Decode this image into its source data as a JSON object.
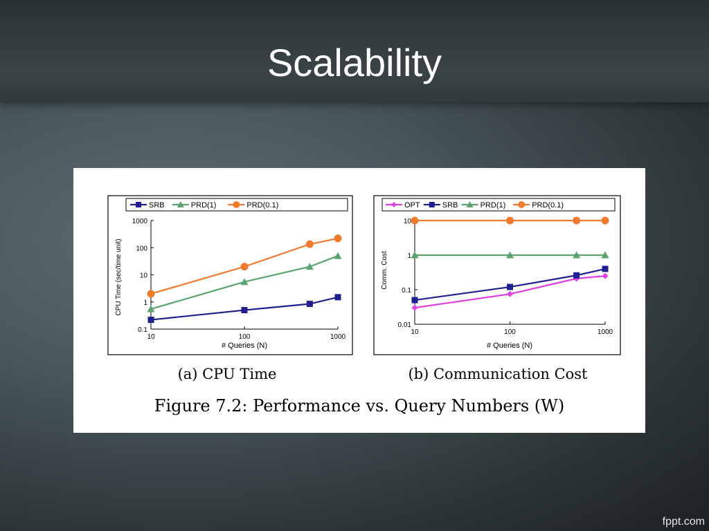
{
  "slide": {
    "title": "Scalability",
    "brand": "fppt.com"
  },
  "figure": {
    "caption": "Figure 7.2: Performance vs. Query Numbers (W)"
  },
  "chart_data": [
    {
      "type": "line",
      "subcaption": "(a) CPU Time",
      "xlabel": "# Queries (N)",
      "ylabel": "CPU Time (sec/time unit)",
      "xscale": "log",
      "yscale": "log",
      "xlim": [
        10,
        1000
      ],
      "ylim": [
        0.1,
        1000
      ],
      "xticks": [
        "10",
        "100",
        "1000"
      ],
      "yticks": [
        "0.1",
        "1",
        "10",
        "100",
        "1000"
      ],
      "legend_position": "top",
      "series": [
        {
          "name": "SRB",
          "color": "#1f1f8f",
          "marker": "square",
          "x": [
            10,
            100,
            500,
            1000
          ],
          "y": [
            0.22,
            0.5,
            0.85,
            1.5
          ]
        },
        {
          "name": "PRD(1)",
          "color": "#5aa36f",
          "marker": "triangle",
          "x": [
            10,
            100,
            500,
            1000
          ],
          "y": [
            0.55,
            5.5,
            20,
            50
          ]
        },
        {
          "name": "PRD(0.1)",
          "color": "#f07a2e",
          "marker": "circle",
          "x": [
            10,
            100,
            500,
            1000
          ],
          "y": [
            2,
            20,
            135,
            220
          ]
        }
      ]
    },
    {
      "type": "line",
      "subcaption": "(b) Communication Cost",
      "xlabel": "# Queries (N)",
      "ylabel": "Comm. Cost",
      "xscale": "log",
      "yscale": "log",
      "xlim": [
        10,
        1000
      ],
      "ylim": [
        0.01,
        10
      ],
      "xticks": [
        "10",
        "100",
        "1000"
      ],
      "yticks": [
        "0.01",
        "0.1",
        "1",
        "10"
      ],
      "legend_position": "top",
      "series": [
        {
          "name": "OPT",
          "color": "#e040e0",
          "marker": "diamond",
          "x": [
            10,
            100,
            500,
            1000
          ],
          "y": [
            0.03,
            0.075,
            0.21,
            0.25
          ]
        },
        {
          "name": "SRB",
          "color": "#1f1f8f",
          "marker": "square",
          "x": [
            10,
            100,
            500,
            1000
          ],
          "y": [
            0.05,
            0.12,
            0.26,
            0.4
          ]
        },
        {
          "name": "PRD(1)",
          "color": "#5aa36f",
          "marker": "triangle",
          "x": [
            10,
            100,
            500,
            1000
          ],
          "y": [
            1,
            1,
            1,
            1
          ]
        },
        {
          "name": "PRD(0.1)",
          "color": "#f07a2e",
          "marker": "circle",
          "x": [
            10,
            100,
            500,
            1000
          ],
          "y": [
            10,
            10,
            10,
            10
          ]
        }
      ]
    }
  ]
}
